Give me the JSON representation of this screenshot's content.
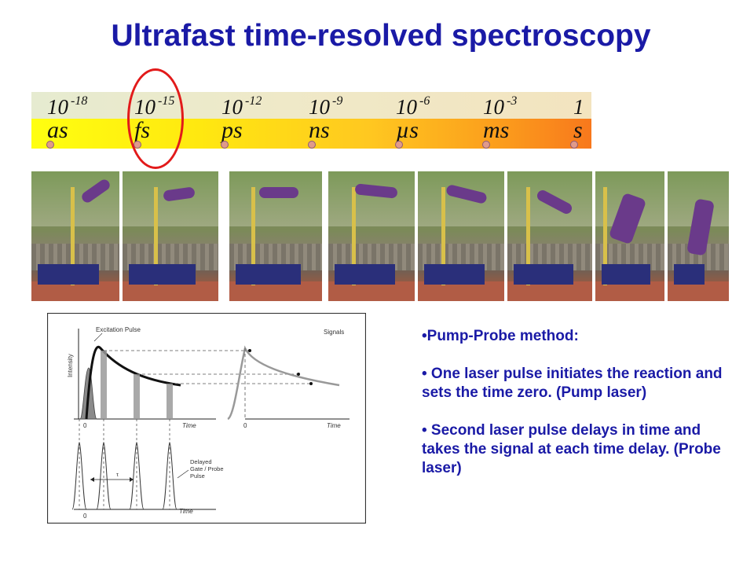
{
  "title": "Ultrafast time-resolved spectroscopy",
  "timescale": {
    "powers": [
      {
        "base": "10",
        "exp": "-18",
        "unit": "as"
      },
      {
        "base": "10",
        "exp": "-15",
        "unit": "fs"
      },
      {
        "base": "10",
        "exp": "-12",
        "unit": "ps"
      },
      {
        "base": "10",
        "exp": "-9",
        "unit": "ns"
      },
      {
        "base": "10",
        "exp": "-6",
        "unit": "µs"
      },
      {
        "base": "10",
        "exp": "-3",
        "unit": "ms"
      },
      {
        "base": "1",
        "exp": "",
        "unit": "s"
      }
    ],
    "highlight": "fs",
    "highlight_color": "#e21a1a",
    "bar_color": "#ffe810"
  },
  "photo_sequence": {
    "frames": 8,
    "subject": "high-jump-sequence"
  },
  "diagram": {
    "excitation_label": "Excitation Pulse",
    "signals_label": "Signals",
    "intensity_label": "Intensity",
    "zero_left": "0",
    "zero_right": "0",
    "zero_bottom": "0",
    "time_left": "Time",
    "time_right": "Time",
    "time_bottom": "Time",
    "tau_label": "τ",
    "delayed_label_1": "Delayed",
    "delayed_label_2": "Gate / Probe",
    "delayed_label_3": "Pulse"
  },
  "bullets": {
    "b1": "•Pump-Probe method:",
    "b2": "• One laser pulse initiates the reaction and sets the time zero. (Pump laser)",
    "b3": "• Second laser pulse delays in time and takes the signal at each time delay. (Probe laser)"
  },
  "text_color": "#1a1aa6"
}
